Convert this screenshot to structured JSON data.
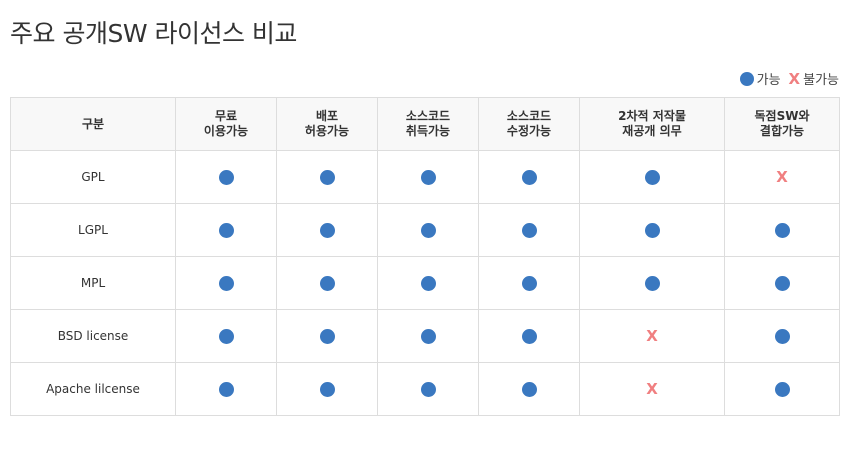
{
  "page": {
    "title": "주요 공개SW 라이선스 비교"
  },
  "colors": {
    "possible": "#3a78c0",
    "impossible": "#f07f80"
  },
  "legend": {
    "possible_label": "가능",
    "impossible_symbol": "X",
    "impossible_label": "불가능"
  },
  "table": {
    "corner_header": "구분",
    "columns": [
      {
        "line1": "무료",
        "line2": "이용가능"
      },
      {
        "line1": "배포",
        "line2": "허용가능"
      },
      {
        "line1": "소스코드",
        "line2": "취득가능"
      },
      {
        "line1": "소스코드",
        "line2": "수정가능"
      },
      {
        "line1": "2차적 저작물",
        "line2": "재공개 의무"
      },
      {
        "line1": "독점SW와",
        "line2": "결합가능"
      }
    ],
    "rows": [
      {
        "name": "GPL",
        "cells": [
          "possible",
          "possible",
          "possible",
          "possible",
          "possible",
          "impossible"
        ]
      },
      {
        "name": "LGPL",
        "cells": [
          "possible",
          "possible",
          "possible",
          "possible",
          "possible",
          "possible"
        ]
      },
      {
        "name": "MPL",
        "cells": [
          "possible",
          "possible",
          "possible",
          "possible",
          "possible",
          "possible"
        ]
      },
      {
        "name": "BSD license",
        "cells": [
          "possible",
          "possible",
          "possible",
          "possible",
          "impossible",
          "possible"
        ]
      },
      {
        "name": "Apache lilcense",
        "cells": [
          "possible",
          "possible",
          "possible",
          "possible",
          "impossible",
          "possible"
        ]
      }
    ]
  }
}
